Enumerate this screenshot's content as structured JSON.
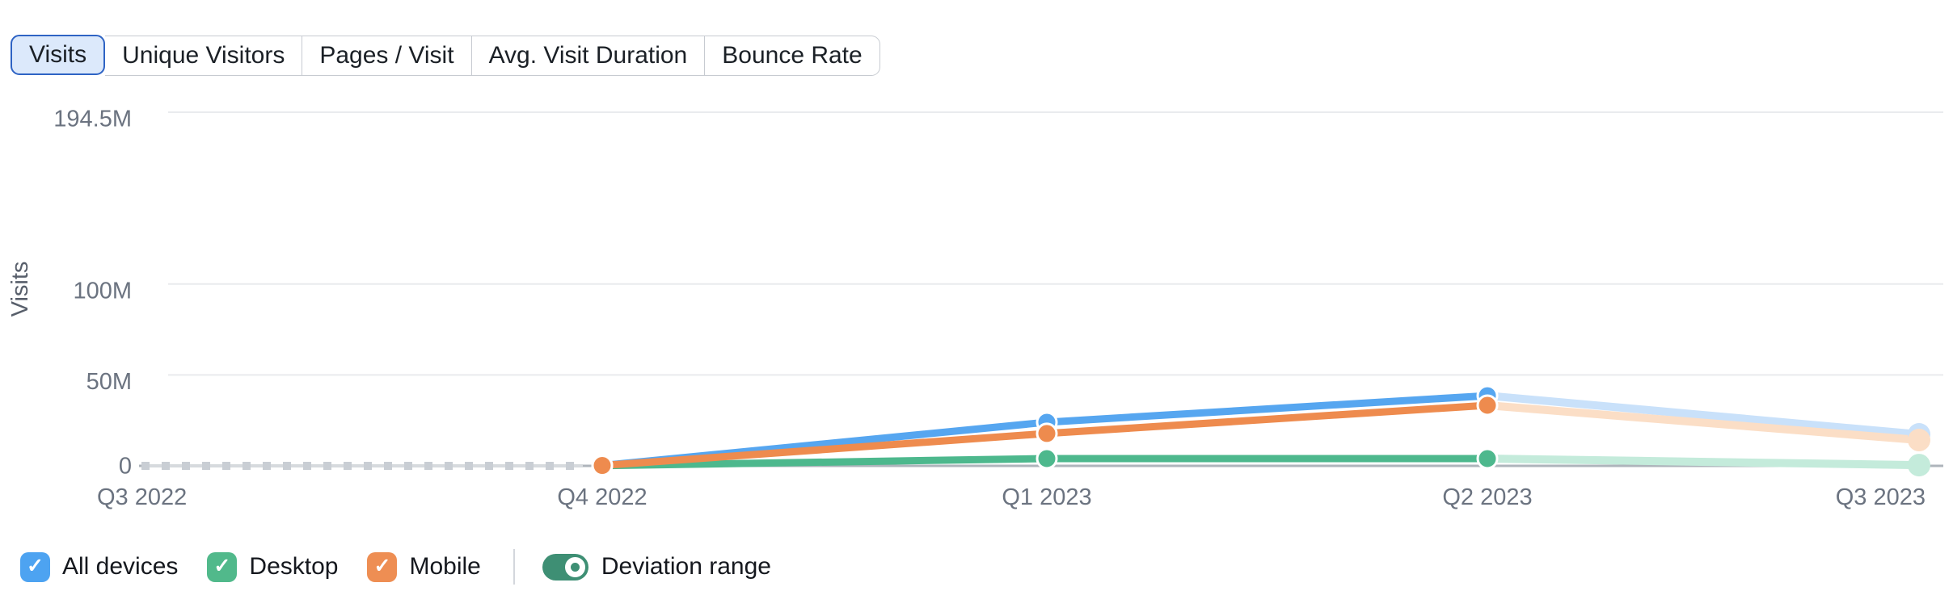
{
  "tabs": {
    "items": [
      {
        "label": "Visits",
        "selected": true
      },
      {
        "label": "Unique Visitors",
        "selected": false
      },
      {
        "label": "Pages / Visit",
        "selected": false
      },
      {
        "label": "Avg. Visit Duration",
        "selected": false
      },
      {
        "label": "Bounce Rate",
        "selected": false
      }
    ],
    "selected_bg": "#dce9fb",
    "selected_border": "#2e63c4"
  },
  "chart_data": {
    "type": "line",
    "title": "",
    "xlabel": "",
    "ylabel": "Visits",
    "unit": "M visits",
    "categories": [
      "Q3 2022",
      "Q4 2022",
      "Q1 2023",
      "Q2 2023",
      "Q3 2023"
    ],
    "y_ticks": [
      {
        "label": "0",
        "value": 0
      },
      {
        "label": "50M",
        "value": 50
      },
      {
        "label": "100M",
        "value": 100
      },
      {
        "label": "194.5M",
        "value": 194.5
      }
    ],
    "ylim": [
      0,
      194.5
    ],
    "grid": true,
    "legend_position": "bottom",
    "note": "Q3 2022 has no data (dashed zero line); Q3 2023 segment is a faded estimate",
    "faded_from_index": 3,
    "no_data_segment": {
      "from_index": 0,
      "to_index": 1,
      "value": 0
    },
    "series": [
      {
        "name": "Desktop",
        "color": "#4db88d",
        "faded_color": "#c4ebdb",
        "values": [
          null,
          0.1,
          4.0,
          4.0,
          0.4
        ]
      },
      {
        "name": "All devices",
        "color": "#56a6f0",
        "faded_color": "#c9e1fa",
        "values": [
          null,
          0.2,
          24.0,
          38.6,
          17.3
        ]
      },
      {
        "name": "Mobile",
        "color": "#ee8b4e",
        "faded_color": "#fbdec6",
        "values": [
          null,
          0.2,
          17.8,
          33.3,
          14.2
        ]
      }
    ],
    "axis_text_color": "#6b7380",
    "grid_color": "#e9ebee",
    "baseline_color": "#aeb4bb",
    "dash_color": "#c9ced4"
  },
  "legend": {
    "items": [
      {
        "label": "All devices",
        "color": "#4da3f1",
        "checked": true
      },
      {
        "label": "Desktop",
        "color": "#51b98b",
        "checked": true
      },
      {
        "label": "Mobile",
        "color": "#ee8e53",
        "checked": true
      }
    ],
    "toggle": {
      "label": "Deviation range",
      "on": true,
      "color": "#3e8f74"
    }
  }
}
